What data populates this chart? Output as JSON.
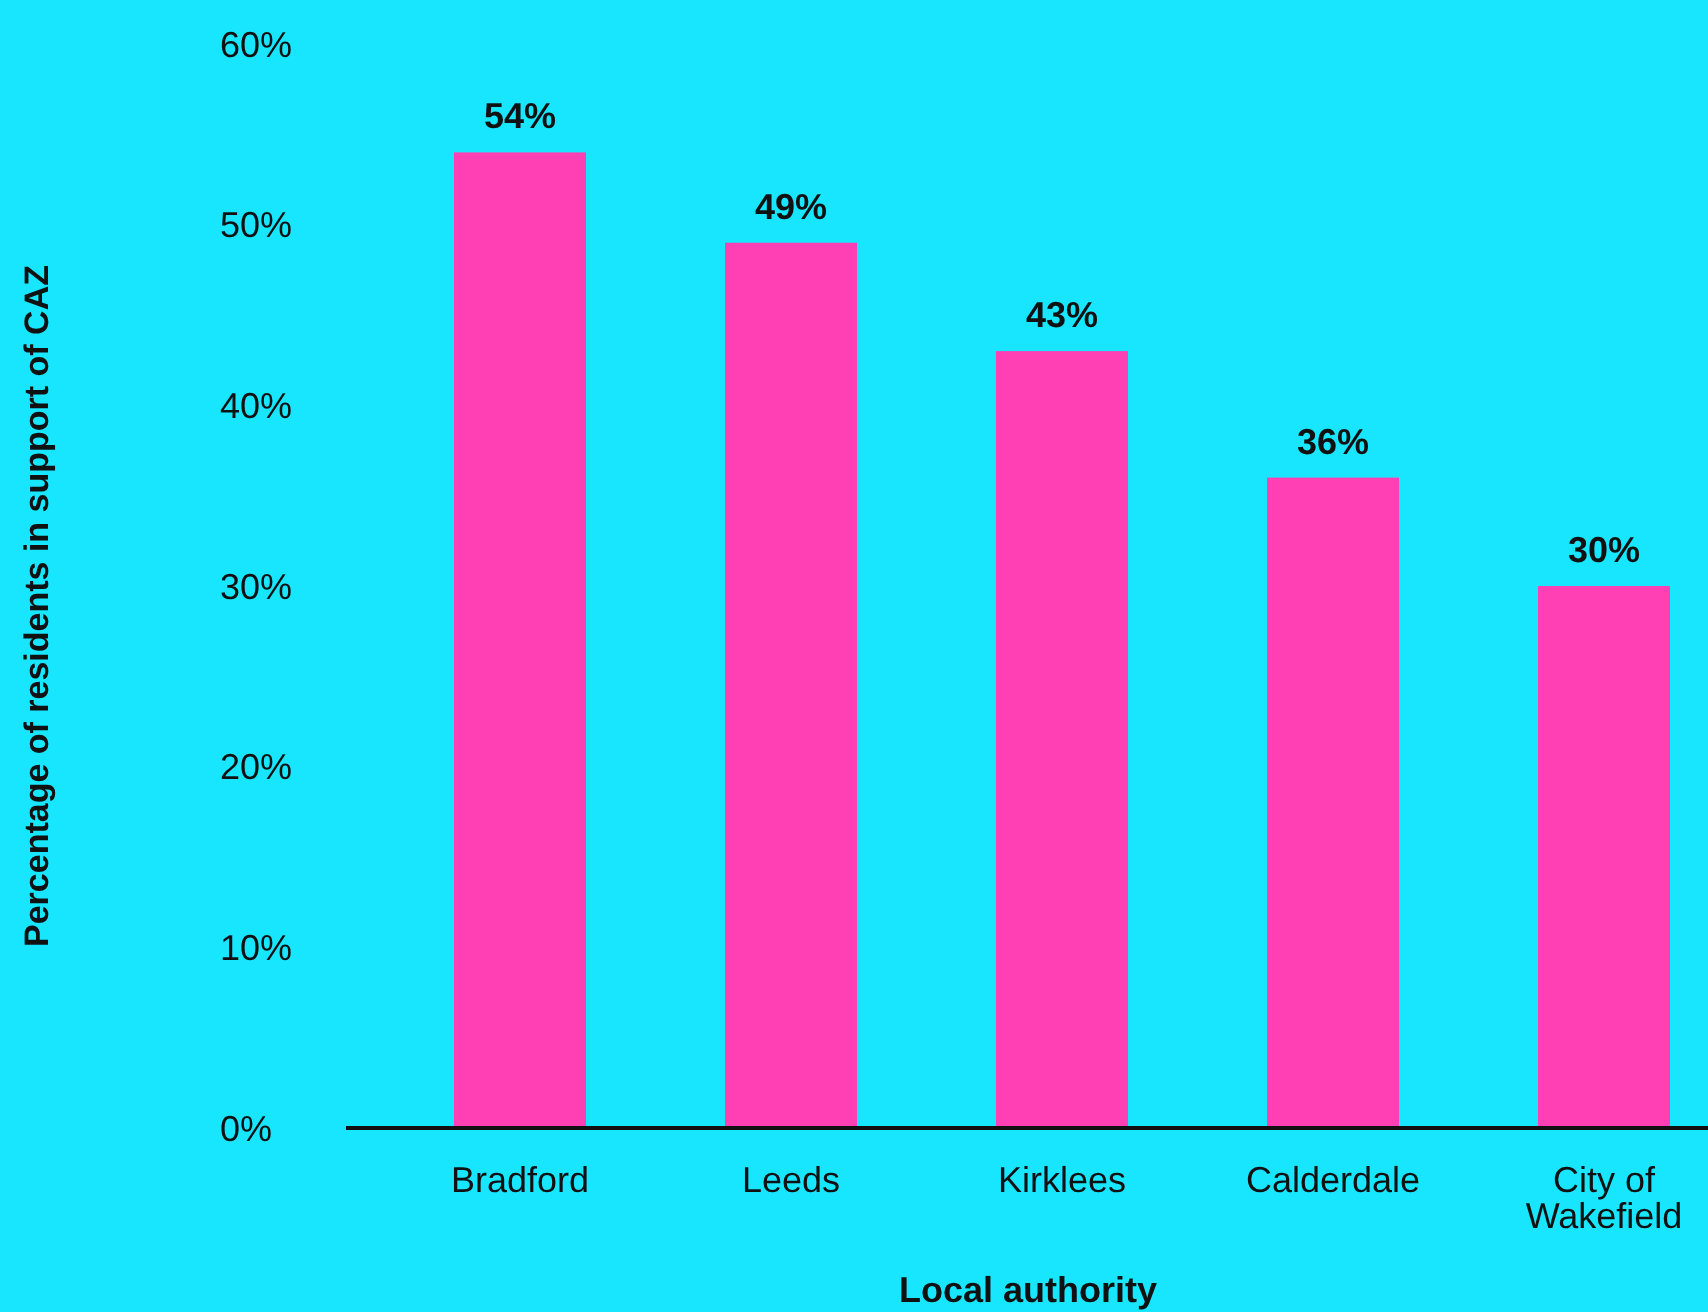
{
  "chart_data": {
    "type": "bar",
    "xlabel": "Local authority",
    "ylabel": "Percentage of residents in support of CAZ",
    "categories": [
      "Bradford",
      "Leeds",
      "Kirklees",
      "Calderdale",
      "City of Wakefield"
    ],
    "values": [
      54,
      49,
      43,
      36,
      30
    ],
    "color": "#ff3fb4",
    "value_labels": [
      "54%",
      "49%",
      "43%",
      "36%",
      "30%"
    ],
    "ylim": [
      0,
      60
    ],
    "yticks": [
      {
        "value": 0,
        "label": "0%"
      },
      {
        "value": 10,
        "label": "10%"
      },
      {
        "value": 20,
        "label": "20%"
      },
      {
        "value": 30,
        "label": "30%"
      },
      {
        "value": 40,
        "label": "40%"
      },
      {
        "value": 50,
        "label": "50%"
      },
      {
        "value": 60,
        "label": "60%"
      }
    ],
    "grid": false
  }
}
